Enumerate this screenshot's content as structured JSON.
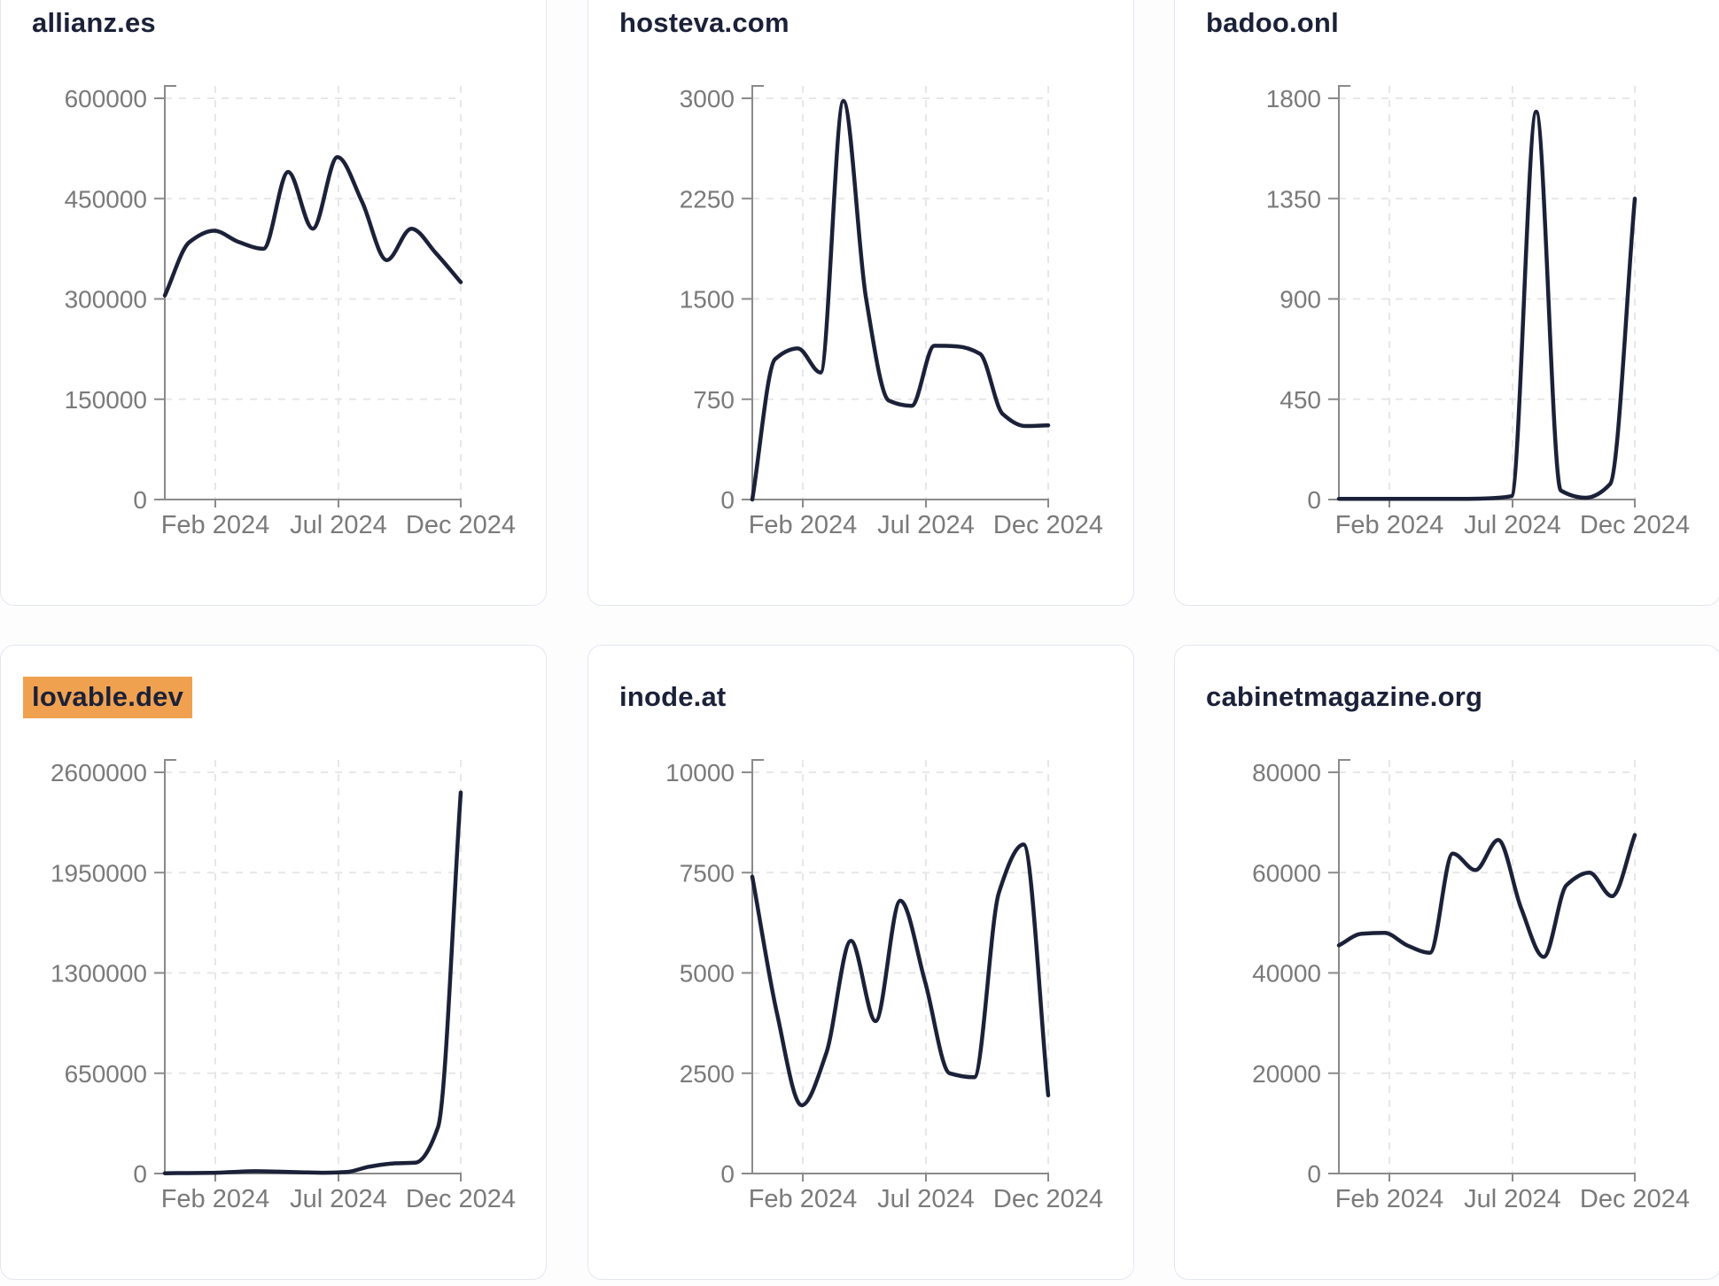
{
  "page": {
    "background": "#fdfdfe",
    "card_background": "#ffffff",
    "card_border_color": "#e4e7f0",
    "title_color": "#1b2138",
    "line_color": "#1b2138",
    "axis_color": "#8a8a8a",
    "tick_label_color": "#7a7a7a",
    "gridline_color": "#e7e7e9",
    "highlight_color": "#f0a150"
  },
  "periods": [
    "Dec 2023",
    "Jan 2024",
    "Feb 2024",
    "Mar 2024",
    "Apr 2024",
    "May 2024",
    "Jun 2024",
    "Jul 2024",
    "Aug 2024",
    "Sep 2024",
    "Oct 2024",
    "Nov 2024",
    "Dec 2024"
  ],
  "chart_data": [
    {
      "type": "line",
      "title": "allianz.es",
      "highlighted": false,
      "xlabel": "",
      "ylabel": "",
      "x_tick_labels": [
        "Feb 2024",
        "Jul 2024",
        "Dec 2024"
      ],
      "y_ticks": [
        0,
        150000,
        300000,
        450000,
        600000
      ],
      "ylim": [
        0,
        600000
      ],
      "grid": true,
      "legend": "none",
      "x": [
        "Dec 2023",
        "Jan 2024",
        "Feb 2024",
        "Mar 2024",
        "Apr 2024",
        "May 2024",
        "Jun 2024",
        "Jul 2024",
        "Aug 2024",
        "Sep 2024",
        "Oct 2024",
        "Nov 2024",
        "Dec 2024"
      ],
      "values": [
        305000,
        385000,
        402000,
        385000,
        375000,
        490000,
        405000,
        512000,
        445000,
        358000,
        405000,
        368000,
        325000
      ]
    },
    {
      "type": "line",
      "title": "hosteva.com",
      "highlighted": false,
      "xlabel": "",
      "ylabel": "",
      "x_tick_labels": [
        "Feb 2024",
        "Jul 2024",
        "Dec 2024"
      ],
      "y_ticks": [
        0,
        750,
        1500,
        2250,
        3000
      ],
      "ylim": [
        0,
        3000
      ],
      "grid": true,
      "legend": "none",
      "x": [
        "Dec 2023",
        "Jan 2024",
        "Feb 2024",
        "Mar 2024",
        "Apr 2024",
        "May 2024",
        "Jun 2024",
        "Jul 2024",
        "Aug 2024",
        "Sep 2024",
        "Oct 2024",
        "Nov 2024",
        "late Nov 2024",
        "Dec 2024"
      ],
      "values": [
        0,
        1050,
        1130,
        950,
        2980,
        1500,
        740,
        700,
        1150,
        1145,
        1090,
        640,
        550,
        555
      ]
    },
    {
      "type": "line",
      "title": "badoo.onl",
      "highlighted": false,
      "xlabel": "",
      "ylabel": "",
      "x_tick_labels": [
        "Feb 2024",
        "Jul 2024",
        "Dec 2024"
      ],
      "y_ticks": [
        0,
        450,
        900,
        1350,
        1800
      ],
      "ylim": [
        0,
        1800
      ],
      "grid": true,
      "legend": "none",
      "x": [
        "Dec 2023",
        "Jan 2024",
        "Feb 2024",
        "Mar 2024",
        "Apr 2024",
        "May 2024",
        "Jun 2024",
        "Jul 2024",
        "Aug 2024",
        "Sep 2024",
        "Oct 2024",
        "Nov 2024",
        "Dec 2024"
      ],
      "values": [
        3,
        3,
        3,
        3,
        3,
        3,
        5,
        15,
        1740,
        40,
        8,
        70,
        1350
      ]
    },
    {
      "type": "line",
      "title": "lovable.dev",
      "highlighted": true,
      "xlabel": "",
      "ylabel": "",
      "x_tick_labels": [
        "Feb 2024",
        "Jul 2024",
        "Dec 2024"
      ],
      "y_ticks": [
        0,
        650000,
        1300000,
        1950000,
        2600000
      ],
      "ylim": [
        0,
        2600000
      ],
      "grid": true,
      "legend": "none",
      "x": [
        "Dec 2023",
        "Jan 2024",
        "Feb 2024",
        "Mar 2024",
        "Apr 2024",
        "May 2024",
        "Jun 2024",
        "Jul 2024",
        "Aug 2024",
        "Sep 2024",
        "Oct 2024",
        "Nov 2024",
        "early Dec 2024",
        "Dec 2024"
      ],
      "values": [
        2000,
        3000,
        4000,
        10000,
        15000,
        12000,
        8000,
        5000,
        10000,
        45000,
        65000,
        70000,
        300000,
        2470000
      ]
    },
    {
      "type": "line",
      "title": "inode.at",
      "highlighted": false,
      "xlabel": "",
      "ylabel": "",
      "x_tick_labels": [
        "Feb 2024",
        "Jul 2024",
        "Dec 2024"
      ],
      "y_ticks": [
        0,
        2500,
        5000,
        7500,
        10000
      ],
      "ylim": [
        0,
        10000
      ],
      "grid": true,
      "legend": "none",
      "x": [
        "Dec 2023",
        "Jan 2024",
        "Feb 2024",
        "Mar 2024",
        "Apr 2024",
        "May 2024",
        "Jun 2024",
        "Jul 2024",
        "Aug 2024",
        "Sep 2024",
        "Oct 2024",
        "Nov 2024",
        "Dec 2024"
      ],
      "values": [
        7400,
        4000,
        1700,
        3000,
        5800,
        3800,
        6800,
        4800,
        2500,
        2400,
        7000,
        8200,
        1950
      ]
    },
    {
      "type": "line",
      "title": "cabinetmagazine.org",
      "highlighted": false,
      "xlabel": "",
      "ylabel": "",
      "x_tick_labels": [
        "Feb 2024",
        "Jul 2024",
        "Dec 2024"
      ],
      "y_ticks": [
        0,
        20000,
        40000,
        60000,
        80000
      ],
      "ylim": [
        0,
        80000
      ],
      "grid": true,
      "legend": "none",
      "x": [
        "Dec 2023",
        "Jan 2024",
        "Feb 2024",
        "Mar 2024",
        "Apr 2024",
        "May 2024",
        "Jun 2024",
        "Jul 2024",
        "Aug 2024",
        "Sep 2024",
        "Oct 2024",
        "Nov 2024",
        "late Nov 2024",
        "Dec 2024"
      ],
      "values": [
        45500,
        47800,
        48000,
        45500,
        44000,
        63800,
        60500,
        66500,
        53000,
        43200,
        57500,
        60000,
        55300,
        67500
      ]
    }
  ],
  "layout_note": "grid of six domain traffic trend cards"
}
